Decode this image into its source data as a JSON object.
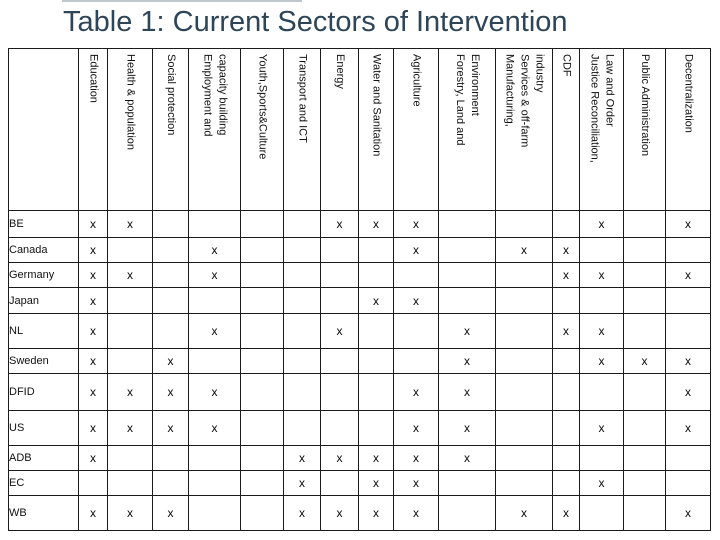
{
  "title": "Table 1: Current Sectors of Intervention",
  "bullet_glyph": "•",
  "colors": {
    "title": "#2e4557",
    "grid": "#1b1b1b",
    "background": "#ffffff"
  },
  "table": {
    "mark": "x",
    "columns": [
      {
        "label": "Education"
      },
      {
        "label": "Health & population"
      },
      {
        "label": "Social protection"
      },
      {
        "label": "Employment and\ncapacity building"
      },
      {
        "label": "Youth,Sports&Culture"
      },
      {
        "label": "Transport and ICT"
      },
      {
        "label": "Energy"
      },
      {
        "label": "Water and Sanitation"
      },
      {
        "label": "Agriculture"
      },
      {
        "label": "Forestry, Land and\nEnvironment"
      },
      {
        "label": "Manufacturing,\nServices & off-farm\nindustry"
      },
      {
        "label": "CDF"
      },
      {
        "label": "Justice Reconciliation,\nLaw and Order"
      },
      {
        "label": "Public Administration"
      },
      {
        "label": "Decentralization"
      }
    ],
    "rows": [
      {
        "label": "BE",
        "marks": [
          0,
          1,
          6,
          7,
          8,
          12,
          14
        ]
      },
      {
        "label": "Canada",
        "marks": [
          0,
          3,
          8,
          10,
          11
        ]
      },
      {
        "label": "Germany",
        "marks": [
          0,
          1,
          3,
          11,
          12,
          14
        ]
      },
      {
        "label": "Japan",
        "marks": [
          0,
          7,
          8
        ]
      },
      {
        "label": "NL",
        "marks": [
          0,
          3,
          6,
          9,
          11,
          12
        ]
      },
      {
        "label": "Sweden",
        "marks": [
          0,
          2,
          9,
          12,
          13,
          14
        ]
      },
      {
        "label": "DFID",
        "marks": [
          0,
          1,
          2,
          3,
          8,
          9,
          14
        ]
      },
      {
        "label": "US",
        "marks": [
          0,
          1,
          2,
          3,
          8,
          9,
          12,
          14
        ]
      },
      {
        "label": "ADB",
        "marks": [
          0,
          5,
          6,
          7,
          8,
          9
        ]
      },
      {
        "label": "EC",
        "marks": [
          5,
          7,
          8,
          12
        ]
      },
      {
        "label": "WB",
        "marks": [
          0,
          1,
          2,
          5,
          6,
          7,
          8,
          10,
          11,
          14
        ]
      }
    ]
  }
}
